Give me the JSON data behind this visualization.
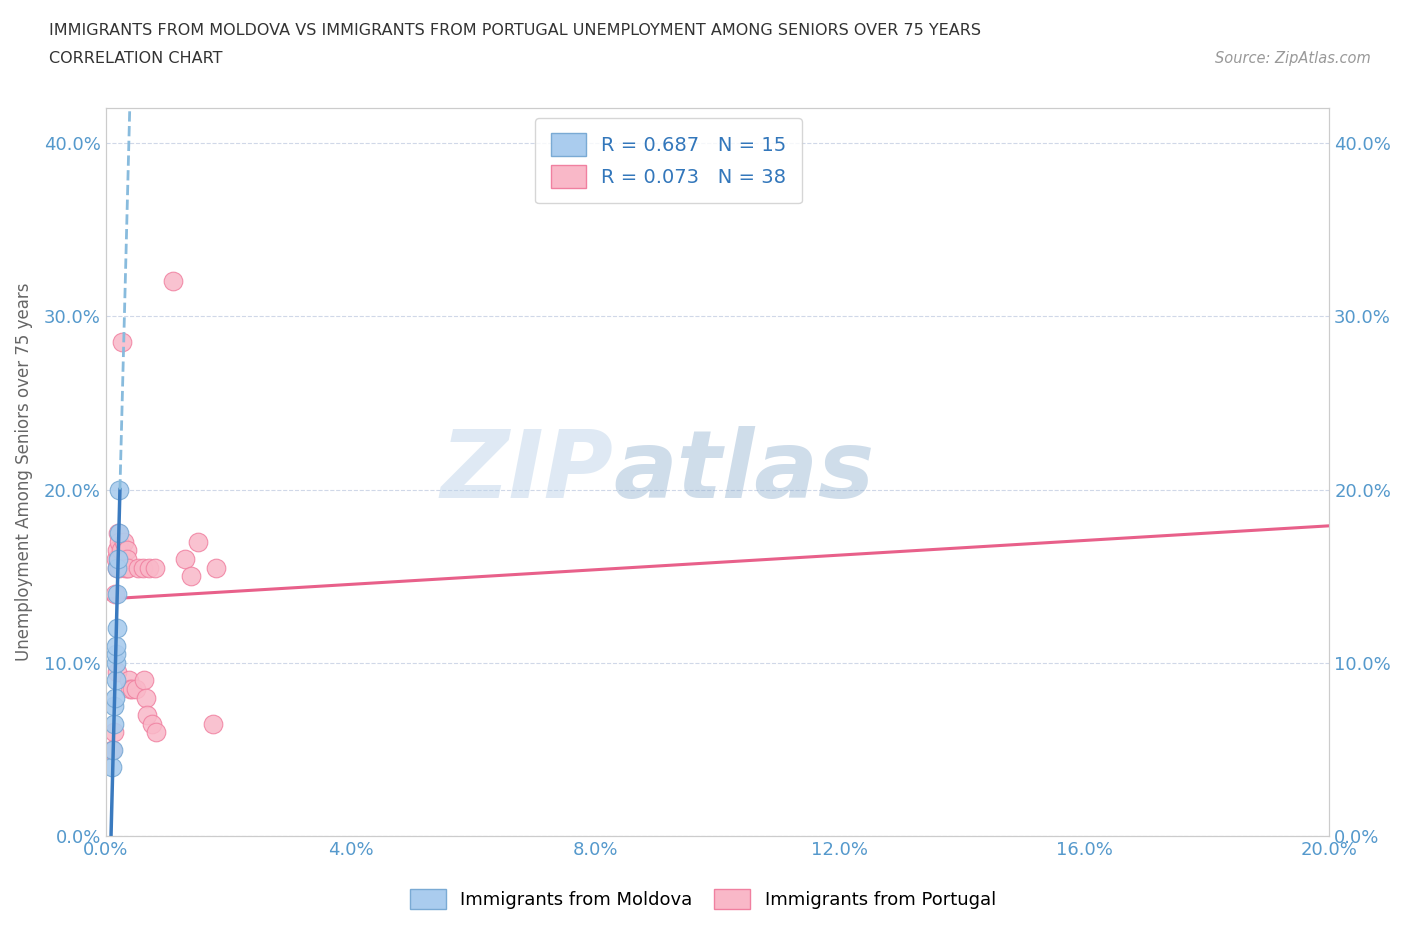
{
  "title_line1": "IMMIGRANTS FROM MOLDOVA VS IMMIGRANTS FROM PORTUGAL UNEMPLOYMENT AMONG SENIORS OVER 75 YEARS",
  "title_line2": "CORRELATION CHART",
  "source_text": "Source: ZipAtlas.com",
  "ylabel": "Unemployment Among Seniors over 75 years",
  "xlim": [
    0.0,
    0.2
  ],
  "ylim": [
    0.0,
    0.42
  ],
  "xticks": [
    0.0,
    0.04,
    0.08,
    0.12,
    0.16,
    0.2
  ],
  "yticks": [
    0.0,
    0.1,
    0.2,
    0.3,
    0.4
  ],
  "watermark_zip": "ZIP",
  "watermark_atlas": "atlas",
  "legend_box": {
    "moldova_R": 0.687,
    "moldova_N": 15,
    "portugal_R": 0.073,
    "portugal_N": 38
  },
  "moldova_color": "#aaccee",
  "moldova_color_dark": "#7aaad4",
  "portugal_color": "#f9b8c8",
  "portugal_color_dark": "#f080a0",
  "trendline_moldova_solid_color": "#3a7abf",
  "trendline_moldova_dash_color": "#88bbdd",
  "trendline_portugal_color": "#e8608a",
  "moldova_scatter": [
    [
      0.001,
      0.04
    ],
    [
      0.0012,
      0.05
    ],
    [
      0.0013,
      0.065
    ],
    [
      0.0014,
      0.075
    ],
    [
      0.0015,
      0.08
    ],
    [
      0.0016,
      0.09
    ],
    [
      0.0016,
      0.1
    ],
    [
      0.0017,
      0.105
    ],
    [
      0.0017,
      0.11
    ],
    [
      0.0018,
      0.12
    ],
    [
      0.0018,
      0.14
    ],
    [
      0.0019,
      0.155
    ],
    [
      0.002,
      0.16
    ],
    [
      0.0021,
      0.175
    ],
    [
      0.0022,
      0.2
    ]
  ],
  "portugal_scatter": [
    [
      0.001,
      0.05
    ],
    [
      0.0013,
      0.06
    ],
    [
      0.0015,
      0.14
    ],
    [
      0.0016,
      0.16
    ],
    [
      0.0018,
      0.095
    ],
    [
      0.0018,
      0.155
    ],
    [
      0.0019,
      0.165
    ],
    [
      0.002,
      0.175
    ],
    [
      0.0021,
      0.16
    ],
    [
      0.0022,
      0.155
    ],
    [
      0.0022,
      0.17
    ],
    [
      0.0024,
      0.165
    ],
    [
      0.0026,
      0.285
    ],
    [
      0.003,
      0.17
    ],
    [
      0.0032,
      0.155
    ],
    [
      0.0034,
      0.165
    ],
    [
      0.0034,
      0.155
    ],
    [
      0.0035,
      0.16
    ],
    [
      0.0036,
      0.155
    ],
    [
      0.0038,
      0.09
    ],
    [
      0.004,
      0.085
    ],
    [
      0.0042,
      0.085
    ],
    [
      0.005,
      0.085
    ],
    [
      0.0052,
      0.155
    ],
    [
      0.006,
      0.155
    ],
    [
      0.0062,
      0.09
    ],
    [
      0.0065,
      0.08
    ],
    [
      0.0068,
      0.07
    ],
    [
      0.007,
      0.155
    ],
    [
      0.0075,
      0.065
    ],
    [
      0.008,
      0.155
    ],
    [
      0.0082,
      0.06
    ],
    [
      0.011,
      0.32
    ],
    [
      0.013,
      0.16
    ],
    [
      0.014,
      0.15
    ],
    [
      0.015,
      0.17
    ],
    [
      0.0175,
      0.065
    ],
    [
      0.018,
      0.155
    ]
  ],
  "background_color": "#ffffff",
  "grid_color": "#d0d8e8",
  "tick_color": "#5599cc",
  "axis_color": "#cccccc"
}
